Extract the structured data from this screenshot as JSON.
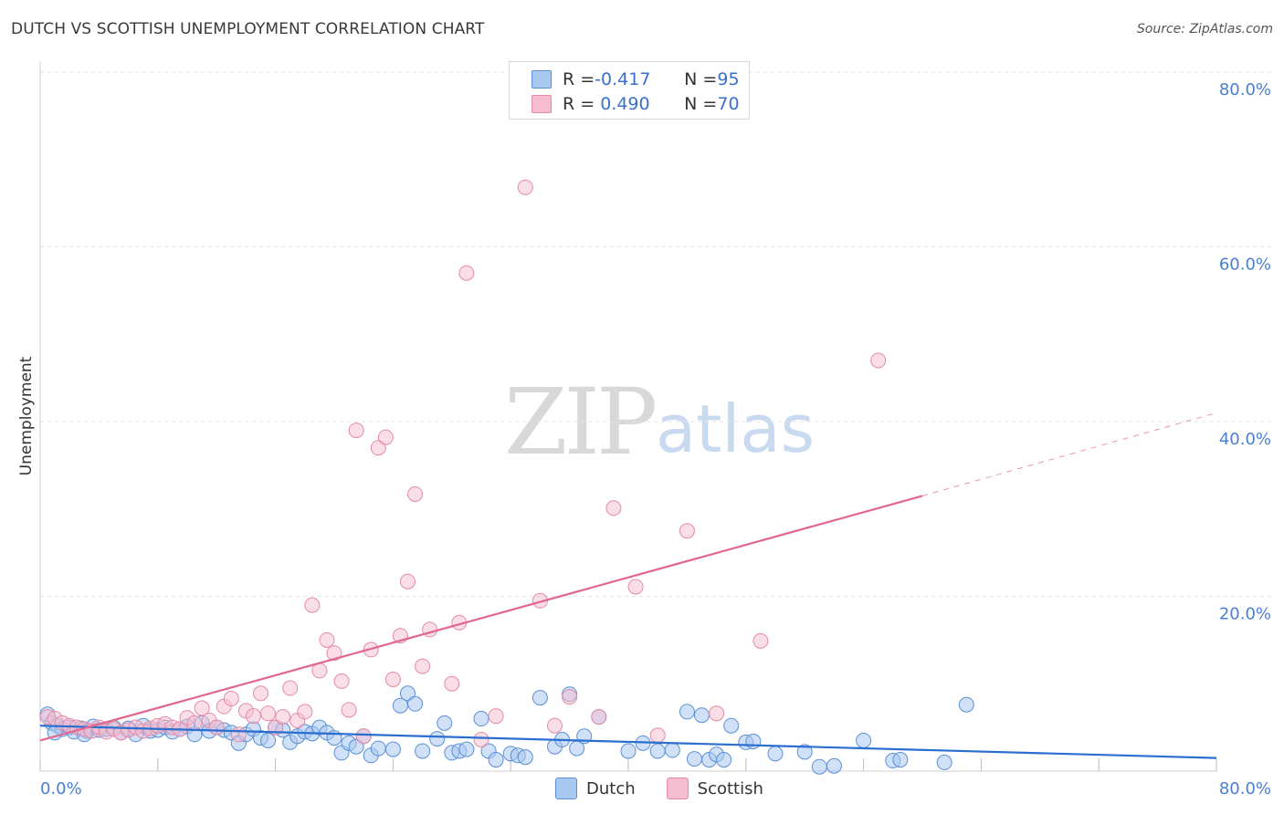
{
  "title": "DUTCH VS SCOTTISH UNEMPLOYMENT CORRELATION CHART",
  "source": "Source: ZipAtlas.com",
  "watermark": {
    "zip": "ZIP",
    "atlas": "atlas"
  },
  "legend": {
    "rows": [
      {
        "r_label": "R = ",
        "r_value": "-0.417",
        "n_label": "N = ",
        "n_value": "95"
      },
      {
        "r_label": "R = ",
        "r_value": " 0.490",
        "n_label": "N = ",
        "n_value": "70"
      }
    ]
  },
  "bottom_legend": {
    "dutch": "Dutch",
    "scottish": "Scottish"
  },
  "colors": {
    "dutch_fill": "#a9c8f0",
    "dutch_stroke": "#5b8fd6",
    "dutch_line": "#2a6fd0",
    "scottish_fill": "#f6bdd0",
    "scottish_stroke": "#e58aa8",
    "scottish_line": "#e0688f",
    "tick_text": "#4a7fd0",
    "grid": "#e3e3e3"
  },
  "chart_data": {
    "type": "scatter",
    "title": "DUTCH VS SCOTTISH UNEMPLOYMENT CORRELATION CHART",
    "xlabel": "",
    "ylabel": "Unemployment",
    "xlim": [
      0,
      80
    ],
    "ylim": [
      0,
      80
    ],
    "x_tick_labels": [
      "0.0%",
      "80.0%"
    ],
    "y_tick_labels": [
      "20.0%",
      "40.0%",
      "60.0%",
      "80.0%"
    ],
    "y_ticks": [
      20,
      40,
      60,
      80
    ],
    "grid": true,
    "legend_position": "top-center",
    "series": [
      {
        "name": "Dutch",
        "R": -0.417,
        "N": 95,
        "trend": [
          [
            0,
            5.2
          ],
          [
            80,
            1.5
          ]
        ],
        "points": [
          [
            0.5,
            6.5
          ],
          [
            0.8,
            5.5
          ],
          [
            1.2,
            5.2
          ],
          [
            1.5,
            4.8
          ],
          [
            2.0,
            5.0
          ],
          [
            2.3,
            4.5
          ],
          [
            2.8,
            4.9
          ],
          [
            3.2,
            4.6
          ],
          [
            3.6,
            5.1
          ],
          [
            4.0,
            4.7
          ],
          [
            4.5,
            4.8
          ],
          [
            5.0,
            5.0
          ],
          [
            5.5,
            4.4
          ],
          [
            6.0,
            4.9
          ],
          [
            6.5,
            4.2
          ],
          [
            7.0,
            5.2
          ],
          [
            7.5,
            4.6
          ],
          [
            8.0,
            4.7
          ],
          [
            8.5,
            5.0
          ],
          [
            9.0,
            4.5
          ],
          [
            9.5,
            4.8
          ],
          [
            10.0,
            5.1
          ],
          [
            10.5,
            4.2
          ],
          [
            11.0,
            5.5
          ],
          [
            11.5,
            4.6
          ],
          [
            12.0,
            5.0
          ],
          [
            12.5,
            4.7
          ],
          [
            13.0,
            4.4
          ],
          [
            13.5,
            3.2
          ],
          [
            14.0,
            4.2
          ],
          [
            14.5,
            4.8
          ],
          [
            15.0,
            3.8
          ],
          [
            15.5,
            3.5
          ],
          [
            16.0,
            5.0
          ],
          [
            16.5,
            4.7
          ],
          [
            17.0,
            3.3
          ],
          [
            17.5,
            4.0
          ],
          [
            18.0,
            4.5
          ],
          [
            18.5,
            4.3
          ],
          [
            19.0,
            5.0
          ],
          [
            19.5,
            4.4
          ],
          [
            20.0,
            3.8
          ],
          [
            20.5,
            2.1
          ],
          [
            21.0,
            3.2
          ],
          [
            21.5,
            2.8
          ],
          [
            22.0,
            4.0
          ],
          [
            22.5,
            1.8
          ],
          [
            23.0,
            2.6
          ],
          [
            24.0,
            2.5
          ],
          [
            24.5,
            7.5
          ],
          [
            25.0,
            8.9
          ],
          [
            25.5,
            7.7
          ],
          [
            26.0,
            2.3
          ],
          [
            27.0,
            3.7
          ],
          [
            27.5,
            5.5
          ],
          [
            28.0,
            2.1
          ],
          [
            28.5,
            2.3
          ],
          [
            29.0,
            2.5
          ],
          [
            30.0,
            6.0
          ],
          [
            30.5,
            2.3
          ],
          [
            31.0,
            1.3
          ],
          [
            32.0,
            2.0
          ],
          [
            32.5,
            1.8
          ],
          [
            33.0,
            1.6
          ],
          [
            34.0,
            8.4
          ],
          [
            35.0,
            2.8
          ],
          [
            35.5,
            3.6
          ],
          [
            36.0,
            8.8
          ],
          [
            36.5,
            2.6
          ],
          [
            37.0,
            4.0
          ],
          [
            38.0,
            6.2
          ],
          [
            40.0,
            2.3
          ],
          [
            41.0,
            3.2
          ],
          [
            42.0,
            2.3
          ],
          [
            43.0,
            2.4
          ],
          [
            44.0,
            6.8
          ],
          [
            44.5,
            1.4
          ],
          [
            45.0,
            6.4
          ],
          [
            45.5,
            1.3
          ],
          [
            46.0,
            1.9
          ],
          [
            46.5,
            1.3
          ],
          [
            47.0,
            5.2
          ],
          [
            48.0,
            3.3
          ],
          [
            48.5,
            3.4
          ],
          [
            50.0,
            2.0
          ],
          [
            52.0,
            2.2
          ],
          [
            53.0,
            0.5
          ],
          [
            54.0,
            0.6
          ],
          [
            56.0,
            3.5
          ],
          [
            58.0,
            1.2
          ],
          [
            58.5,
            1.3
          ],
          [
            61.5,
            1.0
          ],
          [
            63.0,
            7.6
          ],
          [
            1.0,
            4.4
          ],
          [
            3.0,
            4.2
          ]
        ]
      },
      {
        "name": "Scottish",
        "R": 0.49,
        "N": 70,
        "trend": [
          [
            0,
            3.5
          ],
          [
            60,
            31.5
          ]
        ],
        "trend_dashed": [
          [
            60,
            31.5
          ],
          [
            80,
            41.0
          ]
        ],
        "points": [
          [
            0.5,
            6.2
          ],
          [
            1.0,
            6.0
          ],
          [
            1.5,
            5.5
          ],
          [
            2.0,
            5.2
          ],
          [
            2.5,
            5.0
          ],
          [
            3.0,
            4.8
          ],
          [
            3.5,
            4.6
          ],
          [
            4.0,
            5.0
          ],
          [
            4.5,
            4.5
          ],
          [
            5.0,
            4.8
          ],
          [
            5.5,
            4.4
          ],
          [
            6.0,
            4.7
          ],
          [
            6.5,
            5.0
          ],
          [
            7.0,
            4.6
          ],
          [
            7.5,
            4.9
          ],
          [
            8.0,
            5.2
          ],
          [
            8.5,
            5.4
          ],
          [
            9.0,
            5.0
          ],
          [
            9.5,
            4.8
          ],
          [
            10.0,
            6.1
          ],
          [
            10.5,
            5.5
          ],
          [
            11.0,
            7.2
          ],
          [
            11.5,
            5.8
          ],
          [
            12.0,
            5.0
          ],
          [
            12.5,
            7.4
          ],
          [
            13.0,
            8.3
          ],
          [
            13.5,
            4.2
          ],
          [
            14.0,
            6.9
          ],
          [
            14.5,
            6.3
          ],
          [
            15.0,
            8.9
          ],
          [
            15.5,
            6.6
          ],
          [
            16.0,
            5.0
          ],
          [
            16.5,
            6.2
          ],
          [
            17.0,
            9.5
          ],
          [
            17.5,
            5.8
          ],
          [
            18.0,
            6.8
          ],
          [
            18.5,
            19.0
          ],
          [
            19.0,
            11.5
          ],
          [
            19.5,
            15.0
          ],
          [
            20.0,
            13.5
          ],
          [
            20.5,
            10.3
          ],
          [
            21.0,
            7.0
          ],
          [
            21.5,
            39.0
          ],
          [
            22.0,
            4.0
          ],
          [
            22.5,
            13.9
          ],
          [
            23.0,
            37.0
          ],
          [
            23.5,
            38.2
          ],
          [
            24.0,
            10.5
          ],
          [
            24.5,
            15.5
          ],
          [
            25.0,
            21.7
          ],
          [
            25.5,
            31.7
          ],
          [
            26.0,
            12.0
          ],
          [
            26.5,
            16.2
          ],
          [
            28.0,
            10.0
          ],
          [
            28.5,
            17.0
          ],
          [
            29.0,
            57.0
          ],
          [
            30.0,
            3.6
          ],
          [
            31.0,
            6.3
          ],
          [
            33.0,
            66.8
          ],
          [
            34.0,
            19.5
          ],
          [
            35.0,
            5.2
          ],
          [
            36.0,
            8.5
          ],
          [
            38.0,
            6.2
          ],
          [
            39.0,
            30.1
          ],
          [
            40.5,
            21.1
          ],
          [
            42.0,
            4.1
          ],
          [
            44.0,
            27.5
          ],
          [
            46.0,
            6.6
          ],
          [
            49.0,
            14.9
          ],
          [
            57.0,
            47.0
          ]
        ]
      }
    ]
  }
}
